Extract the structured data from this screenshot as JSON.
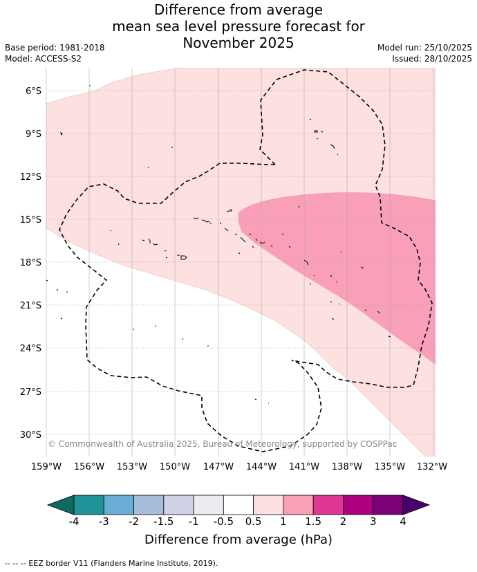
{
  "title": {
    "line1": "Difference from average",
    "line2": "mean sea level pressure forecast for",
    "line3": "November 2025"
  },
  "meta": {
    "base_period": "Base period: 1981-2018",
    "model": "Model: ACCESS-S2",
    "model_run": "Model run: 25/10/2025",
    "issued": "Issued: 28/10/2025"
  },
  "axes": {
    "lat_labels": [
      "6°S",
      "9°S",
      "12°S",
      "15°S",
      "18°S",
      "21°S",
      "24°S",
      "27°S",
      "30°S"
    ],
    "lon_labels": [
      "159°W",
      "156°W",
      "153°W",
      "150°W",
      "147°W",
      "144°W",
      "141°W",
      "138°W",
      "135°W",
      "132°W"
    ]
  },
  "copyright": "© Commonwealth of Australia 2025, Bureau of Meteorology, supported by COSPPac",
  "colorbar": {
    "title": "Difference from average (hPa)",
    "labels": [
      "-4",
      "-3",
      "-2",
      "-1.5",
      "-1",
      "-0.5",
      "0.5",
      "1",
      "1.5",
      "2",
      "3",
      "4"
    ],
    "colors": [
      "#0e6b63",
      "#1e9398",
      "#6aaed6",
      "#a6bddb",
      "#d0d1e6",
      "#ececf0",
      "#ffffff",
      "#fde0e0",
      "#f99fb6",
      "#df3796",
      "#ae017e",
      "#7a0177",
      "#49006a"
    ]
  },
  "footnote": "-- -- -- EEZ border V11 (Flanders Marine Institute, 2019)."
}
